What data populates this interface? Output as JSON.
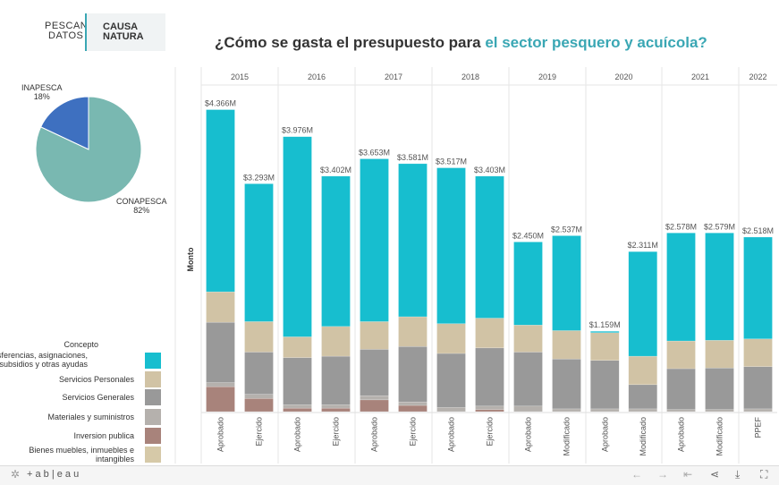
{
  "header": {
    "logo1_line1": "PESCANDO",
    "logo1_line2": "DATOS",
    "logo2_line1": "CAUSA",
    "logo2_line2": "NATURA",
    "title_part1": "¿Cómo se gasta el presupuesto para ",
    "title_part2": "el sector pesquero y acuícola?"
  },
  "pie": {
    "slices": [
      {
        "label": "INAPESCA",
        "pct": "18%",
        "value": 18,
        "color": "#3e70c0"
      },
      {
        "label": "CONAPESCA",
        "pct": "82%",
        "value": 82,
        "color": "#79b8b1"
      }
    ]
  },
  "legend": {
    "title": "Concepto",
    "items": [
      {
        "label": "Transferencias, asignaciones, subsidios y otras ayudas",
        "color": "#17becf"
      },
      {
        "label": "Servicios Personales",
        "color": "#d1c3a5"
      },
      {
        "label": "Servicios Generales",
        "color": "#999999"
      },
      {
        "label": "Materiales y suministros",
        "color": "#b5b1ad"
      },
      {
        "label": "Inversion publica",
        "color": "#a8837b"
      },
      {
        "label": "Bienes muebles, inmuebles e intangibles",
        "color": "#d6c9a8"
      }
    ]
  },
  "chart_data": {
    "type": "bar",
    "stacked": true,
    "ylabel": "Monto",
    "ylim": [
      0,
      4.5
    ],
    "years": [
      "2015",
      "2016",
      "2017",
      "2018",
      "2019",
      "2020",
      "2021",
      "2022"
    ],
    "bars": [
      {
        "year": "2015",
        "label": "Aprobado",
        "total": "$4.366M",
        "segments": [
          2.63,
          0.44,
          0.87,
          0.06,
          0.36,
          0
        ]
      },
      {
        "year": "2015",
        "label": "Ejercido",
        "total": "$3.293M",
        "segments": [
          1.99,
          0.44,
          0.61,
          0.06,
          0.19,
          0
        ]
      },
      {
        "year": "2016",
        "label": "Aprobado",
        "total": "$3.976M",
        "segments": [
          2.89,
          0.3,
          0.68,
          0.05,
          0.05,
          0
        ]
      },
      {
        "year": "2016",
        "label": "Ejercido",
        "total": "$3.402M",
        "segments": [
          2.17,
          0.43,
          0.7,
          0.05,
          0.05,
          0
        ]
      },
      {
        "year": "2017",
        "label": "Aprobado",
        "total": "$3.653M",
        "segments": [
          2.35,
          0.4,
          0.67,
          0.06,
          0.17,
          0
        ]
      },
      {
        "year": "2017",
        "label": "Ejercido",
        "total": "$3.581M",
        "segments": [
          2.21,
          0.43,
          0.8,
          0.05,
          0.09,
          0
        ]
      },
      {
        "year": "2018",
        "label": "Aprobado",
        "total": "$3.517M",
        "segments": [
          2.25,
          0.43,
          0.78,
          0.06,
          0,
          0
        ]
      },
      {
        "year": "2018",
        "label": "Ejercido",
        "total": "$3.403M",
        "segments": [
          2.05,
          0.43,
          0.84,
          0.05,
          0.03,
          0
        ]
      },
      {
        "year": "2019",
        "label": "Aprobado",
        "total": "$2.450M",
        "segments": [
          1.2,
          0.39,
          0.78,
          0.08,
          0,
          0
        ]
      },
      {
        "year": "2019",
        "label": "Modificado",
        "total": "$2.537M",
        "segments": [
          1.37,
          0.41,
          0.72,
          0.04,
          0,
          0
        ]
      },
      {
        "year": "2020",
        "label": "Aprobado",
        "total": "$1.159M",
        "segments": [
          0.02,
          0.4,
          0.7,
          0.04,
          0,
          0
        ]
      },
      {
        "year": "2020",
        "label": "Modificado",
        "total": "$2.311M",
        "segments": [
          1.51,
          0.41,
          0.35,
          0.04,
          0,
          0
        ]
      },
      {
        "year": "2021",
        "label": "Aprobado",
        "total": "$2.578M",
        "segments": [
          1.56,
          0.4,
          0.59,
          0.03,
          0,
          0
        ]
      },
      {
        "year": "2021",
        "label": "Modificado",
        "total": "$2.579M",
        "segments": [
          1.55,
          0.4,
          0.6,
          0.03,
          0,
          0
        ]
      },
      {
        "year": "2022",
        "label": "PPEF",
        "total": "$2.518M",
        "segments": [
          1.47,
          0.4,
          0.61,
          0.04,
          0,
          0
        ]
      }
    ]
  },
  "footer": {
    "brand": "+ a b | e a u"
  }
}
